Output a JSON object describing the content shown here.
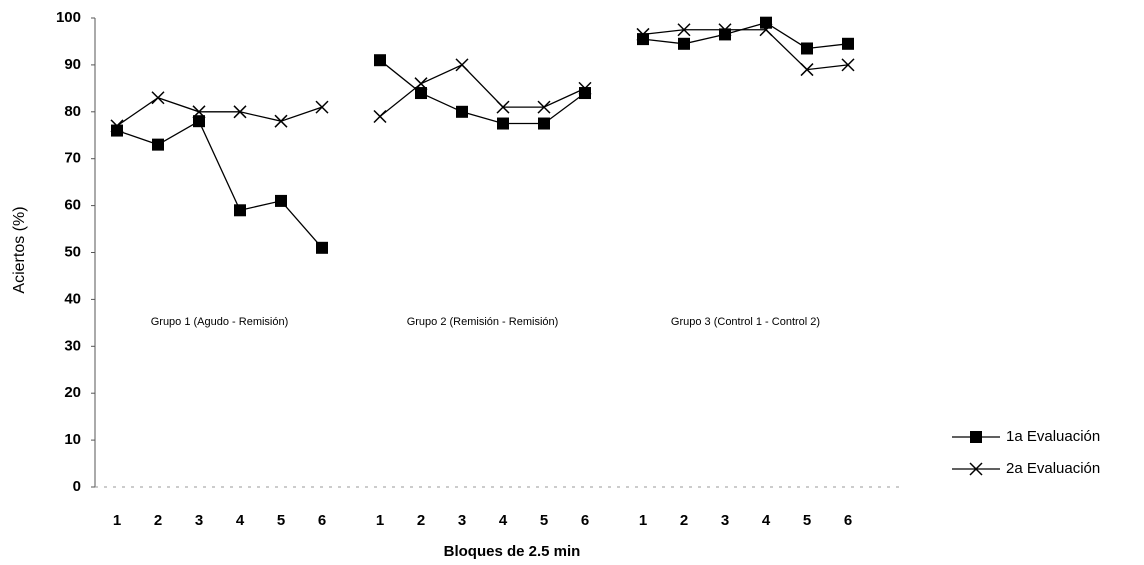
{
  "chart_data": {
    "type": "line",
    "xlabel": "Bloques de 2.5 min",
    "ylabel": "Aciertos (%)",
    "categories": [
      "1",
      "2",
      "3",
      "4",
      "5",
      "6",
      null,
      "1",
      "2",
      "3",
      "4",
      "5",
      "6",
      null,
      "1",
      "2",
      "3",
      "4",
      "5",
      "6"
    ],
    "group_labels": [
      "Grupo 1 (Agudo - Remisión)",
      "Grupo 2 (Remisión - Remisión)",
      "Grupo 3 (Control 1 - Control 2)"
    ],
    "series": [
      {
        "name": "1a Evaluación",
        "color": "#000000",
        "marker": "square",
        "values": [
          76,
          73,
          78,
          59,
          61,
          51,
          null,
          91,
          84,
          80,
          77.5,
          77.5,
          84,
          null,
          95.5,
          94.5,
          96.5,
          99,
          93.5,
          94.5
        ]
      },
      {
        "name": "2a Evaluación",
        "color": "#000000",
        "marker": "x",
        "values": [
          77,
          83,
          80,
          80,
          78,
          81,
          null,
          79,
          86,
          90,
          81,
          81,
          85,
          null,
          96.5,
          97.5,
          97.5,
          97.5,
          89,
          90
        ]
      }
    ],
    "ylim": [
      0,
      100
    ],
    "yticks": [
      0,
      10,
      20,
      30,
      40,
      50,
      60,
      70,
      80,
      90,
      100
    ],
    "legend": "right"
  }
}
